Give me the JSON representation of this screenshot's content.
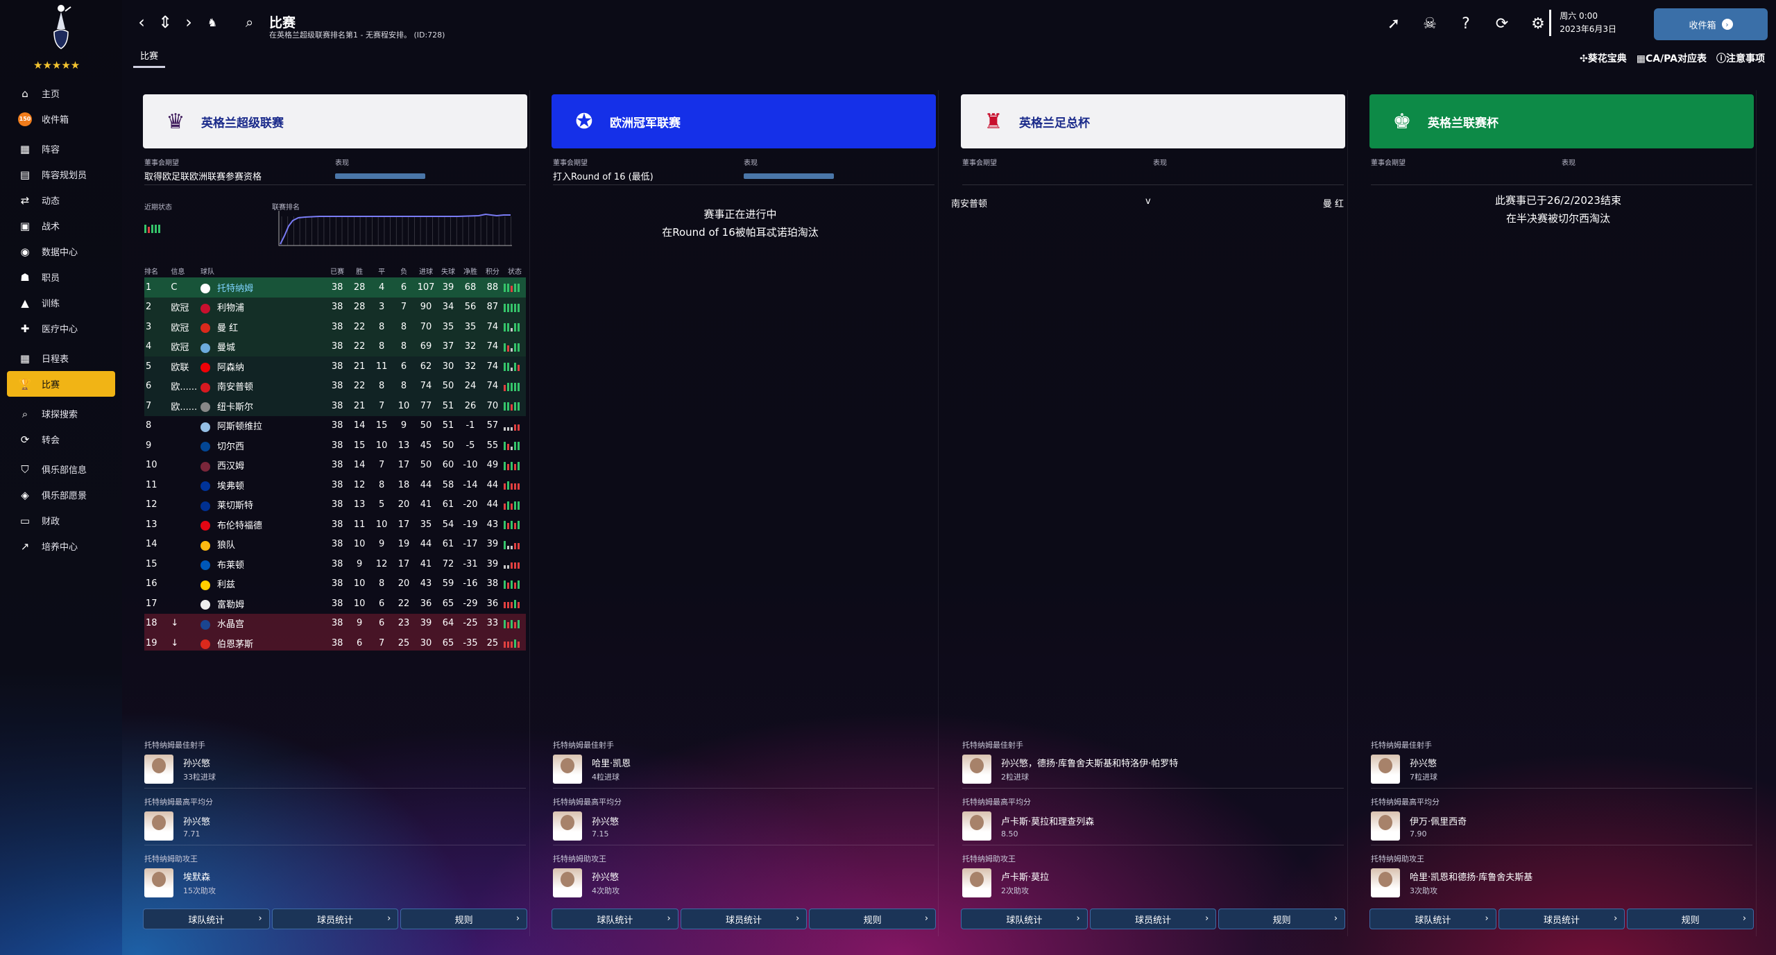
{
  "sidebar": {
    "stars": "★★★★★",
    "items": [
      {
        "label": "主页",
        "icon": "home-icon",
        "glyph": "⌂"
      },
      {
        "label": "收件箱",
        "icon": "inbox-icon",
        "glyph": "150"
      },
      {
        "label": "阵容",
        "icon": "squad-icon",
        "glyph": "▦"
      },
      {
        "label": "阵容规划员",
        "icon": "planner-icon",
        "glyph": "▤"
      },
      {
        "label": "动态",
        "icon": "dynamics-icon",
        "glyph": "⇄"
      },
      {
        "label": "战术",
        "icon": "tactics-icon",
        "glyph": "▣"
      },
      {
        "label": "数据中心",
        "icon": "data-hub-icon",
        "glyph": "◉"
      },
      {
        "label": "职员",
        "icon": "staff-icon",
        "glyph": "☗"
      },
      {
        "label": "训练",
        "icon": "training-icon",
        "glyph": "▲"
      },
      {
        "label": "医疗中心",
        "icon": "medical-icon",
        "glyph": "✚"
      },
      {
        "label": "日程表",
        "icon": "schedule-icon",
        "glyph": "▦"
      },
      {
        "label": "比赛",
        "icon": "trophy-icon",
        "glyph": "🏆"
      },
      {
        "label": "球探搜索",
        "icon": "scouting-icon",
        "glyph": "⌕"
      },
      {
        "label": "转会",
        "icon": "transfers-icon",
        "glyph": "⟳"
      },
      {
        "label": "俱乐部信息",
        "icon": "club-info-icon",
        "glyph": "⛉"
      },
      {
        "label": "俱乐部愿景",
        "icon": "club-vision-icon",
        "glyph": "◈"
      },
      {
        "label": "财政",
        "icon": "finances-icon",
        "glyph": "▭"
      },
      {
        "label": "培养中心",
        "icon": "development-icon",
        "glyph": "↗"
      }
    ]
  },
  "topbar": {
    "title": "比赛",
    "subtitle": "在英格兰超级联赛排名第1 - 无赛程安排。 (ID:728)",
    "date_line1": "周六 0:00",
    "date_line2": "2023年6月3日",
    "inbox_label": "收件箱",
    "tab": "比赛",
    "links": [
      "葵花宝典",
      "CA/PA对应表",
      "注意事项"
    ]
  },
  "panels": [
    {
      "name": "英格兰超级联赛",
      "expect_label": "董事会期望",
      "expect": "取得欧足联欧洲联赛参赛资格",
      "perf_label": "表现",
      "form_label": "近期状态",
      "rank_label": "联赛排名",
      "topscorer_label": "托特纳姆最佳射手",
      "topscorer": "孙兴慜",
      "topscorer_val": "33粒进球",
      "rating_label": "托特纳姆最高平均分",
      "rating_player": "孙兴慜",
      "rating_val": "7.71",
      "assist_label": "托特纳姆助攻王",
      "assist_player": "埃默森",
      "assist_val": "15次助攻"
    },
    {
      "name": "欧洲冠军联赛",
      "expect_label": "董事会期望",
      "expect": "打入Round of 16 (最低)",
      "perf_label": "表现",
      "msg1": "赛事正在进行中",
      "msg2": "在Round of 16被帕耳忒诺珀淘汰",
      "topscorer_label": "托特纳姆最佳射手",
      "topscorer": "哈里·凯恩",
      "topscorer_val": "4粒进球",
      "rating_label": "托特纳姆最高平均分",
      "rating_player": "孙兴慜",
      "rating_val": "7.15",
      "assist_label": "托特纳姆助攻王",
      "assist_player": "孙兴慜",
      "assist_val": "4次助攻"
    },
    {
      "name": "英格兰足总杯",
      "expect_label": "董事会期望",
      "perf_label": "表现",
      "fixture_home": "南安普顿",
      "fixture_vs": "v",
      "fixture_away": "曼 红",
      "topscorer_label": "托特纳姆最佳射手",
      "topscorer": "孙兴慜，德扬·库鲁舍夫斯基和特洛伊·帕罗特",
      "topscorer_val": "2粒进球",
      "rating_label": "托特纳姆最高平均分",
      "rating_player": "卢卡斯·莫拉和理查列森",
      "rating_val": "8.50",
      "assist_label": "托特纳姆助攻王",
      "assist_player": "卢卡斯·莫拉",
      "assist_val": "2次助攻"
    },
    {
      "name": "英格兰联赛杯",
      "expect_label": "董事会期望",
      "perf_label": "表现",
      "msg1": "此赛事已于26/2/2023结束",
      "msg2": "在半决赛被切尔西淘汰",
      "topscorer_label": "托特纳姆最佳射手",
      "topscorer": "孙兴慜",
      "topscorer_val": "7粒进球",
      "rating_label": "托特纳姆最高平均分",
      "rating_player": "伊万·佩里西奇",
      "rating_val": "7.90",
      "assist_label": "托特纳姆助攻王",
      "assist_player": "哈里·凯恩和德扬·库鲁舍夫斯基",
      "assist_val": "3次助攻"
    }
  ],
  "buttons": [
    "球队统计",
    "球员统计",
    "规则"
  ],
  "table": {
    "headers": [
      "排名",
      "信息",
      "球队",
      "已赛",
      "胜",
      "平",
      "负",
      "进球",
      "失球",
      "净胜",
      "积分",
      "状态"
    ],
    "rows": [
      {
        "pos": "1",
        "info": "C",
        "team": "托特纳姆",
        "p": "38",
        "w": "28",
        "d": "4",
        "l": "6",
        "gf": "107",
        "ga": "39",
        "gd": "68",
        "pts": "88",
        "zone": "cl",
        "color": "#ffffff",
        "form": "wwlww"
      },
      {
        "pos": "2",
        "info": "欧冠",
        "team": "利物浦",
        "p": "38",
        "w": "28",
        "d": "3",
        "l": "7",
        "gf": "90",
        "ga": "34",
        "gd": "56",
        "pts": "87",
        "zone": "cl",
        "color": "#c8102e",
        "form": "wwwww"
      },
      {
        "pos": "3",
        "info": "欧冠",
        "team": "曼 红",
        "p": "38",
        "w": "22",
        "d": "8",
        "l": "8",
        "gf": "70",
        "ga": "35",
        "gd": "35",
        "pts": "74",
        "zone": "cl",
        "color": "#da291c",
        "form": "wwdww"
      },
      {
        "pos": "4",
        "info": "欧冠",
        "team": "曼城",
        "p": "38",
        "w": "22",
        "d": "8",
        "l": "8",
        "gf": "69",
        "ga": "37",
        "gd": "32",
        "pts": "74",
        "zone": "cl",
        "color": "#6cabdd",
        "form": "wldww"
      },
      {
        "pos": "5",
        "info": "欧联",
        "team": "阿森纳",
        "p": "38",
        "w": "21",
        "d": "11",
        "l": "6",
        "gf": "62",
        "ga": "30",
        "gd": "32",
        "pts": "74",
        "zone": "el",
        "color": "#ef0107",
        "form": "wwdwl"
      },
      {
        "pos": "6",
        "info": "欧......",
        "team": "南安普顿",
        "p": "38",
        "w": "22",
        "d": "8",
        "l": "8",
        "gf": "74",
        "ga": "50",
        "gd": "24",
        "pts": "74",
        "zone": "el",
        "color": "#d71920",
        "form": "lwwww"
      },
      {
        "pos": "7",
        "info": "欧......",
        "team": "纽卡斯尔",
        "p": "38",
        "w": "21",
        "d": "7",
        "l": "10",
        "gf": "77",
        "ga": "51",
        "gd": "26",
        "pts": "70",
        "zone": "el",
        "color": "#888888",
        "form": "wwlww"
      },
      {
        "pos": "8",
        "info": "",
        "team": "阿斯顿维拉",
        "p": "38",
        "w": "14",
        "d": "15",
        "l": "9",
        "gf": "50",
        "ga": "51",
        "gd": "-1",
        "pts": "57",
        "zone": "",
        "color": "#95bfe5",
        "form": "dddll"
      },
      {
        "pos": "9",
        "info": "",
        "team": "切尔西",
        "p": "38",
        "w": "15",
        "d": "10",
        "l": "13",
        "gf": "45",
        "ga": "50",
        "gd": "-5",
        "pts": "55",
        "zone": "",
        "color": "#034694",
        "form": "wldww"
      },
      {
        "pos": "10",
        "info": "",
        "team": "西汉姆",
        "p": "38",
        "w": "14",
        "d": "7",
        "l": "17",
        "gf": "50",
        "ga": "60",
        "gd": "-10",
        "pts": "49",
        "zone": "",
        "color": "#7a263a",
        "form": "wlwlw"
      },
      {
        "pos": "11",
        "info": "",
        "team": "埃弗顿",
        "p": "38",
        "w": "12",
        "d": "8",
        "l": "18",
        "gf": "44",
        "ga": "58",
        "gd": "-14",
        "pts": "44",
        "zone": "",
        "color": "#003399",
        "form": "lwlll"
      },
      {
        "pos": "12",
        "info": "",
        "team": "莱切斯特",
        "p": "38",
        "w": "13",
        "d": "5",
        "l": "20",
        "gf": "41",
        "ga": "61",
        "gd": "-20",
        "pts": "44",
        "zone": "",
        "color": "#003090",
        "form": "lwlww"
      },
      {
        "pos": "13",
        "info": "",
        "team": "布伦特福德",
        "p": "38",
        "w": "11",
        "d": "10",
        "l": "17",
        "gf": "35",
        "ga": "54",
        "gd": "-19",
        "pts": "43",
        "zone": "",
        "color": "#e30613",
        "form": "wlwlw"
      },
      {
        "pos": "14",
        "info": "",
        "team": "狼队",
        "p": "38",
        "w": "10",
        "d": "9",
        "l": "19",
        "gf": "44",
        "ga": "61",
        "gd": "-17",
        "pts": "39",
        "zone": "",
        "color": "#fdb913",
        "form": "wddll"
      },
      {
        "pos": "15",
        "info": "",
        "team": "布莱顿",
        "p": "38",
        "w": "9",
        "d": "12",
        "l": "17",
        "gf": "41",
        "ga": "72",
        "gd": "-31",
        "pts": "39",
        "zone": "",
        "color": "#0057b8",
        "form": "ddlll"
      },
      {
        "pos": "16",
        "info": "",
        "team": "利兹",
        "p": "38",
        "w": "10",
        "d": "8",
        "l": "20",
        "gf": "43",
        "ga": "59",
        "gd": "-16",
        "pts": "38",
        "zone": "",
        "color": "#ffcd00",
        "form": "wlwlw"
      },
      {
        "pos": "17",
        "info": "",
        "team": "富勒姆",
        "p": "38",
        "w": "10",
        "d": "6",
        "l": "22",
        "gf": "36",
        "ga": "65",
        "gd": "-29",
        "pts": "36",
        "zone": "",
        "color": "#eeeeee",
        "form": "lllwl"
      },
      {
        "pos": "18",
        "info": "↓",
        "team": "水晶宫",
        "p": "38",
        "w": "9",
        "d": "6",
        "l": "23",
        "gf": "39",
        "ga": "64",
        "gd": "-25",
        "pts": "33",
        "zone": "rel",
        "color": "#1b458f",
        "form": "wlwlw"
      },
      {
        "pos": "19",
        "info": "↓",
        "team": "伯恩茅斯",
        "p": "38",
        "w": "6",
        "d": "7",
        "l": "25",
        "gf": "30",
        "ga": "65",
        "gd": "-35",
        "pts": "25",
        "zone": "rel",
        "color": "#da291c",
        "form": "lllwl"
      }
    ]
  },
  "colors": {
    "premier": "#f2f2f4",
    "ucl": "#1530e8",
    "facup": "#f2f2f4",
    "efl": "#0d8a47",
    "active_nav": "#f1b415"
  }
}
